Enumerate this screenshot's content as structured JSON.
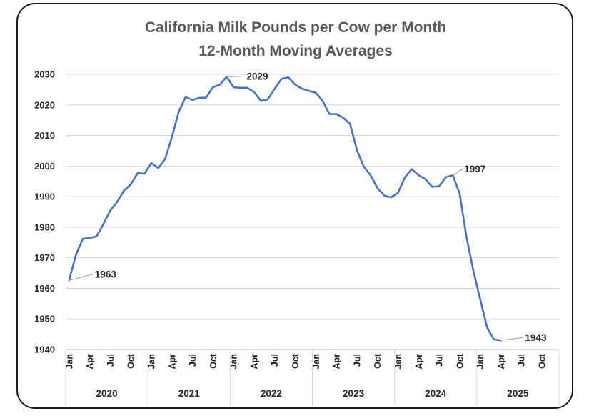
{
  "chart_data": {
    "type": "line",
    "title": "California Milk Pounds per Cow per Month",
    "subtitle": "12-Month Moving Averages",
    "xlabel": "",
    "ylabel": "",
    "ylim": [
      1940,
      2030
    ],
    "yticks": [
      1940,
      1950,
      1960,
      1970,
      1980,
      1990,
      2000,
      2010,
      2020,
      2030
    ],
    "grid": true,
    "legend": "none",
    "line_color": "#4472c4",
    "x_tick_labels": [
      "Jan",
      "Apr",
      "Jul",
      "Oct",
      "Jan",
      "Apr",
      "Jul",
      "Oct",
      "Jan",
      "Apr",
      "Jul",
      "Oct",
      "Jan",
      "Apr",
      "Jul",
      "Oct",
      "Jan",
      "Apr",
      "Jul",
      "Oct",
      "Jan",
      "Apr",
      "Jul",
      "Oct"
    ],
    "years": [
      "2020",
      "2021",
      "2022",
      "2023",
      "2024",
      "2025"
    ],
    "x": [
      "Jan 2020",
      "Feb 2020",
      "Mar 2020",
      "Apr 2020",
      "May 2020",
      "Jun 2020",
      "Jul 2020",
      "Aug 2020",
      "Sep 2020",
      "Oct 2020",
      "Nov 2020",
      "Dec 2020",
      "Jan 2021",
      "Feb 2021",
      "Mar 2021",
      "Apr 2021",
      "May 2021",
      "Jun 2021",
      "Jul 2021",
      "Aug 2021",
      "Sep 2021",
      "Oct 2021",
      "Nov 2021",
      "Dec 2021",
      "Jan 2022",
      "Feb 2022",
      "Mar 2022",
      "Apr 2022",
      "May 2022",
      "Jun 2022",
      "Jul 2022",
      "Aug 2022",
      "Sep 2022",
      "Oct 2022",
      "Nov 2022",
      "Dec 2022",
      "Jan 2023",
      "Feb 2023",
      "Mar 2023",
      "Apr 2023",
      "May 2023",
      "Jun 2023",
      "Jul 2023",
      "Aug 2023",
      "Sep 2023",
      "Oct 2023",
      "Nov 2023",
      "Dec 2023",
      "Jan 2024",
      "Feb 2024",
      "Mar 2024",
      "Apr 2024",
      "May 2024",
      "Jun 2024",
      "Jul 2024",
      "Aug 2024",
      "Sep 2024",
      "Oct 2024",
      "Nov 2024",
      "Dec 2024",
      "Jan 2025",
      "Feb 2025",
      "Mar 2025",
      "Apr 2025"
    ],
    "values": [
      1962.6,
      1971.0,
      1976.2,
      1976.5,
      1977.0,
      1981.0,
      1985.5,
      1988.2,
      1992.0,
      1994.0,
      1997.7,
      1997.5,
      2001.0,
      1999.3,
      2002.3,
      2009.5,
      2017.8,
      2022.6,
      2021.6,
      2022.3,
      2022.4,
      2025.8,
      2026.6,
      2029.2,
      2025.8,
      2025.6,
      2025.6,
      2024.2,
      2021.3,
      2021.8,
      2025.3,
      2028.5,
      2029.0,
      2026.6,
      2025.3,
      2024.6,
      2024.0,
      2021.3,
      2017.0,
      2017.0,
      2015.8,
      2013.8,
      2005.3,
      1999.8,
      1997.0,
      1992.8,
      1990.3,
      1989.8,
      1991.3,
      1996.3,
      1999.0,
      1997.0,
      1995.7,
      1993.2,
      1993.4,
      1996.4,
      1997.0,
      1991.0,
      1976.8,
      1965.8,
      1956.4,
      1947.3,
      1943.3,
      1943.0
    ],
    "annotations": [
      {
        "text": "1963",
        "index": 0
      },
      {
        "text": "2029",
        "index": 23
      },
      {
        "text": "1997",
        "index": 56
      },
      {
        "text": "1943",
        "index": 63
      }
    ]
  }
}
